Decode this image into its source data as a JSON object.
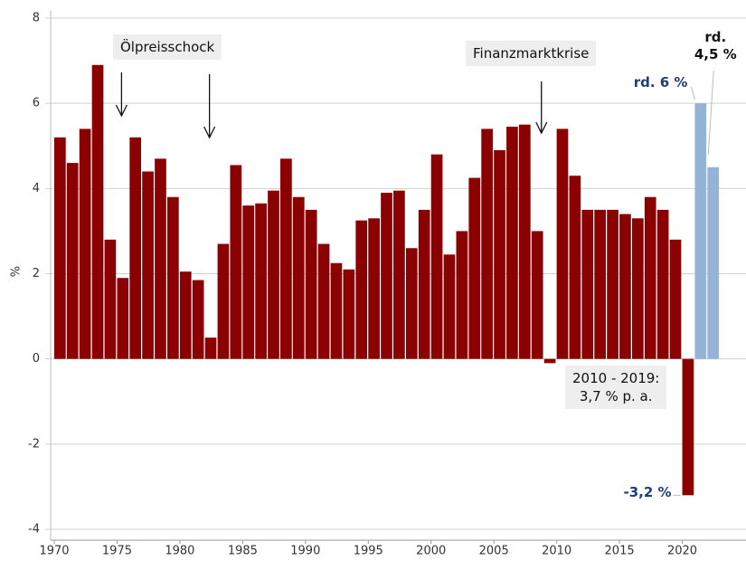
{
  "chart_data": {
    "type": "bar",
    "y_label": "%",
    "xlim": [
      1970,
      2025
    ],
    "xticks": [
      1970,
      1975,
      1980,
      1985,
      1990,
      1995,
      2000,
      2005,
      2010,
      2015,
      2020
    ],
    "ylim": [
      -4,
      8
    ],
    "yticks": [
      -4,
      -2,
      0,
      2,
      4,
      6,
      8
    ],
    "grid": true,
    "series": [
      {
        "color": "#8b0000",
        "x": [
          1970,
          1971,
          1972,
          1973,
          1974,
          1975,
          1976,
          1977,
          1978,
          1979,
          1980,
          1981,
          1982,
          1983,
          1984,
          1985,
          1986,
          1987,
          1988,
          1989,
          1990,
          1991,
          1992,
          1993,
          1994,
          1995,
          1996,
          1997,
          1998,
          1999,
          2000,
          2001,
          2002,
          2003,
          2004,
          2005,
          2006,
          2007,
          2008,
          2009,
          2010,
          2011,
          2012,
          2013,
          2014,
          2015,
          2016,
          2017,
          2018,
          2019,
          2020
        ],
        "values": [
          5.2,
          4.6,
          5.4,
          6.9,
          2.8,
          1.9,
          5.2,
          4.4,
          4.7,
          3.8,
          2.05,
          1.85,
          0.5,
          2.7,
          4.55,
          3.6,
          3.65,
          3.95,
          4.7,
          3.8,
          3.5,
          2.7,
          2.25,
          2.1,
          3.25,
          3.3,
          3.9,
          3.95,
          2.6,
          3.5,
          4.8,
          2.45,
          3.0,
          4.25,
          5.4,
          4.9,
          5.45,
          5.5,
          3.0,
          -0.1,
          5.4,
          4.3,
          3.5,
          3.5,
          3.5,
          3.4,
          3.3,
          3.8,
          3.5,
          2.8,
          -3.2
        ],
        "value_labels": [
          null,
          null,
          null,
          null,
          null,
          null,
          null,
          null,
          null,
          null,
          null,
          null,
          null,
          null,
          null,
          null,
          null,
          null,
          null,
          null,
          null,
          null,
          null,
          null,
          null,
          null,
          null,
          null,
          null,
          null,
          null,
          null,
          null,
          null,
          null,
          null,
          null,
          null,
          null,
          null,
          null,
          null,
          null,
          null,
          null,
          null,
          null,
          null,
          null,
          null,
          "-3,2 %"
        ]
      },
      {
        "color": "#95b3d7",
        "x": [
          2021,
          2022
        ],
        "values": [
          6,
          4.5
        ],
        "value_labels": [
          "rd. 6 %",
          "rd.\n4,5 %"
        ]
      }
    ],
    "annotations": [
      {
        "text": "Ölpreisschock",
        "arrow_x": [
          1975,
          1982
        ]
      },
      {
        "text": "Finanzmarktkrise",
        "arrow_x": [
          2009
        ]
      },
      {
        "text": "2010 - 2019:\n3,7 % p. a."
      }
    ]
  }
}
